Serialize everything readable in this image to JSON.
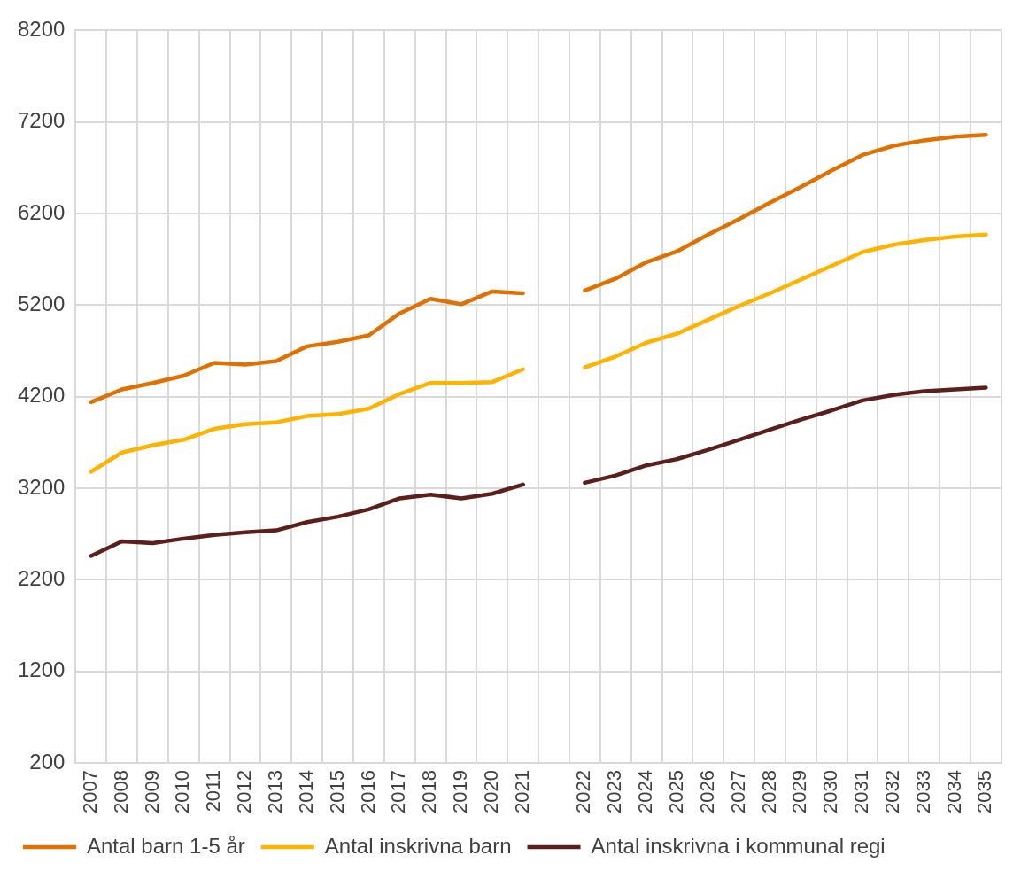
{
  "chart_data": {
    "type": "line",
    "categories": [
      "2007",
      "2008",
      "2009",
      "2010",
      "2011",
      "2012",
      "2013",
      "2014",
      "2015",
      "2016",
      "2017",
      "2018",
      "2019",
      "2020",
      "2021",
      null,
      "2022",
      "2023",
      "2024",
      "2025",
      "2026",
      "2027",
      "2028",
      "2029",
      "2030",
      "2031",
      "2032",
      "2033",
      "2034",
      "2035"
    ],
    "series": [
      {
        "name": "Antal barn 1-5 år",
        "color": "#e07000",
        "values": [
          4140,
          4280,
          4350,
          4430,
          4570,
          4550,
          4590,
          4750,
          4800,
          4870,
          5110,
          5270,
          5210,
          5350,
          5330,
          null,
          5360,
          5490,
          5670,
          5790,
          5970,
          6140,
          6320,
          6490,
          6670,
          6840,
          6940,
          7000,
          7040,
          7060
        ]
      },
      {
        "name": "Antal inskrivna barn",
        "color": "#ffb300",
        "values": [
          3380,
          3590,
          3670,
          3730,
          3850,
          3900,
          3920,
          3990,
          4010,
          4070,
          4230,
          4350,
          4350,
          4360,
          4500,
          null,
          4520,
          4640,
          4790,
          4890,
          5040,
          5190,
          5330,
          5480,
          5630,
          5780,
          5860,
          5910,
          5950,
          5970
        ]
      },
      {
        "name": "Antal inskrivna i kommunal regi",
        "color": "#5c1f1c",
        "values": [
          2460,
          2620,
          2600,
          2650,
          2690,
          2720,
          2740,
          2830,
          2890,
          2970,
          3090,
          3130,
          3090,
          3140,
          3240,
          null,
          3260,
          3340,
          3450,
          3520,
          3620,
          3730,
          3840,
          3950,
          4050,
          4160,
          4220,
          4260,
          4280,
          4300
        ]
      }
    ],
    "ylim": [
      200,
      8200
    ],
    "yticks": [
      200,
      1200,
      2200,
      3200,
      4200,
      5200,
      6200,
      7200,
      8200
    ],
    "grid": true,
    "legend": "bottom",
    "marker": "none",
    "line_style": "solid"
  }
}
